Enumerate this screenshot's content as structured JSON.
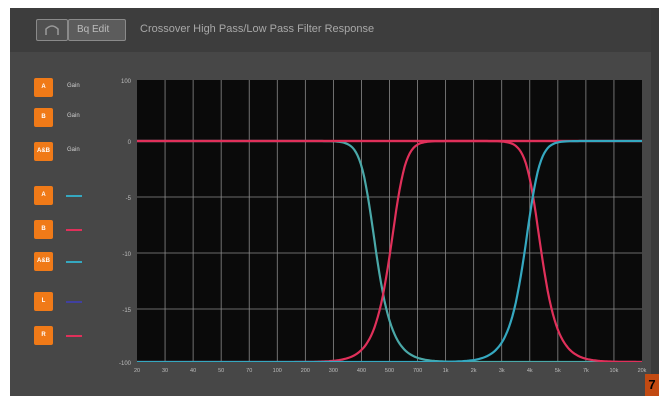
{
  "window": {
    "title": "Crossover High Pass/Low Pass Filter Response",
    "graph_button_label": "Bq Edit"
  },
  "channels": [
    {
      "button": "A",
      "name": "Gain",
      "color": "#d9d9d9"
    },
    {
      "button": "B",
      "name": "Gain",
      "color": "#d9d9d9"
    },
    {
      "button": "A&B",
      "name": "Gain",
      "color": "#d9d9d9"
    },
    {
      "button": "A",
      "name": "",
      "color": "#35a8c0"
    },
    {
      "button": "B",
      "name": "",
      "color": "#e0305a"
    },
    {
      "button": "A&B",
      "name": "",
      "color": "#35a8c0"
    },
    {
      "button": "L",
      "name": "",
      "color": "#4040a0"
    },
    {
      "button": "R",
      "name": "",
      "color": "#e0305a"
    }
  ],
  "corner_tag": "7",
  "chart_data": {
    "type": "line",
    "title": "",
    "xlabel": "",
    "ylabel": "",
    "x_scale": "log",
    "xlim": [
      20,
      20000
    ],
    "ylim": [
      -100,
      100
    ],
    "ytick_labels": [
      "100",
      "0",
      "-5",
      "-10",
      "-15",
      "-100"
    ],
    "xtick_labels": [
      "20",
      "30",
      "40",
      "50",
      "70",
      "100",
      "200",
      "300",
      "400",
      "500",
      "700",
      "1k",
      "2k",
      "3k",
      "4k",
      "5k",
      "7k",
      "10k",
      "20k"
    ],
    "grid": true,
    "series": [
      {
        "color": "#e0305a",
        "shape": "flat",
        "x": [
          20,
          20000
        ],
        "y": [
          0,
          0
        ]
      },
      {
        "color": "#4aa8a8",
        "shape": "lowpass",
        "corner": 480,
        "order": 6
      },
      {
        "color": "#e0305a",
        "shape": "highpass",
        "corner": 700,
        "order": 6
      },
      {
        "color": "#e0305a",
        "shape": "lowpass",
        "corner": 4600,
        "order": 6
      },
      {
        "color": "#35a8c0",
        "shape": "highpass",
        "corner": 4400,
        "order": 6
      }
    ]
  }
}
